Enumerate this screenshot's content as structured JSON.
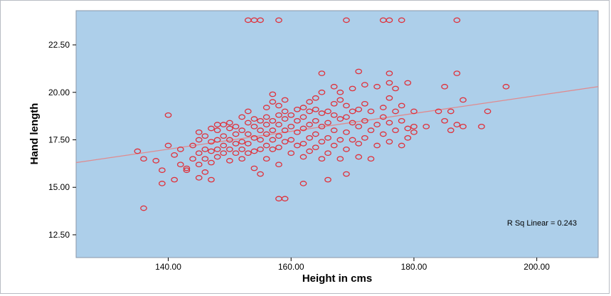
{
  "chart_data": {
    "type": "scatter",
    "title": "",
    "xlabel": "Height in cms",
    "ylabel": "Hand length",
    "xlim": [
      125,
      210
    ],
    "ylim": [
      11.3,
      24.3
    ],
    "xticks": [
      140,
      160,
      180,
      200
    ],
    "xtick_labels": [
      "140.00",
      "160.00",
      "180.00",
      "200.00"
    ],
    "yticks": [
      12.5,
      15.0,
      17.5,
      20.0,
      22.5
    ],
    "ytick_labels": [
      "12.50",
      "15.00",
      "17.50",
      "20.00",
      "22.50"
    ],
    "grid": false,
    "plot_background": "#adcfea",
    "marker_color": "#e0303a",
    "fit_line_color": "#e08a8e",
    "fit_line": {
      "x": [
        125,
        210
      ],
      "y": [
        16.3,
        20.3
      ]
    },
    "annotation": "R Sq Linear = 0.243",
    "points": [
      [
        153,
        23.8
      ],
      [
        154,
        23.8
      ],
      [
        155,
        23.8
      ],
      [
        158,
        23.8
      ],
      [
        169,
        23.8
      ],
      [
        175,
        23.8
      ],
      [
        176,
        23.8
      ],
      [
        178,
        23.8
      ],
      [
        187,
        23.8
      ],
      [
        136,
        13.9
      ],
      [
        139,
        15.2
      ],
      [
        141,
        15.4
      ],
      [
        143,
        15.9
      ],
      [
        145,
        15.5
      ],
      [
        147,
        15.4
      ],
      [
        155,
        15.7
      ],
      [
        158,
        14.4
      ],
      [
        159,
        14.4
      ],
      [
        162,
        15.2
      ],
      [
        166,
        15.4
      ],
      [
        169,
        15.7
      ],
      [
        135,
        16.9
      ],
      [
        136,
        16.5
      ],
      [
        138,
        16.4
      ],
      [
        139,
        15.9
      ],
      [
        140,
        17.2
      ],
      [
        140,
        18.8
      ],
      [
        141,
        16.7
      ],
      [
        142,
        16.2
      ],
      [
        142,
        17.0
      ],
      [
        143,
        16.0
      ],
      [
        144,
        16.5
      ],
      [
        144,
        17.2
      ],
      [
        145,
        16.2
      ],
      [
        145,
        16.8
      ],
      [
        145,
        17.5
      ],
      [
        145,
        17.9
      ],
      [
        146,
        15.8
      ],
      [
        146,
        16.5
      ],
      [
        146,
        17.0
      ],
      [
        146,
        17.7
      ],
      [
        147,
        16.3
      ],
      [
        147,
        16.9
      ],
      [
        147,
        17.4
      ],
      [
        147,
        18.1
      ],
      [
        148,
        16.6
      ],
      [
        148,
        17.0
      ],
      [
        148,
        17.5
      ],
      [
        148,
        18.0
      ],
      [
        148,
        18.3
      ],
      [
        149,
        16.8
      ],
      [
        149,
        17.2
      ],
      [
        149,
        17.7
      ],
      [
        149,
        18.3
      ],
      [
        150,
        16.4
      ],
      [
        150,
        17.0
      ],
      [
        150,
        17.5
      ],
      [
        150,
        18.1
      ],
      [
        150,
        18.4
      ],
      [
        151,
        16.8
      ],
      [
        151,
        17.3
      ],
      [
        151,
        17.8
      ],
      [
        151,
        18.2
      ],
      [
        152,
        16.5
      ],
      [
        152,
        17.0
      ],
      [
        152,
        17.4
      ],
      [
        152,
        18.0
      ],
      [
        152,
        18.7
      ],
      [
        153,
        16.8
      ],
      [
        153,
        17.3
      ],
      [
        153,
        17.8
      ],
      [
        153,
        18.4
      ],
      [
        153,
        19.0
      ],
      [
        154,
        16.0
      ],
      [
        154,
        16.9
      ],
      [
        154,
        17.6
      ],
      [
        154,
        18.2
      ],
      [
        154,
        18.6
      ],
      [
        155,
        17.0
      ],
      [
        155,
        17.5
      ],
      [
        155,
        18.0
      ],
      [
        155,
        18.5
      ],
      [
        156,
        16.5
      ],
      [
        156,
        17.2
      ],
      [
        156,
        17.8
      ],
      [
        156,
        18.3
      ],
      [
        156,
        18.7
      ],
      [
        156,
        19.2
      ],
      [
        157,
        17.0
      ],
      [
        157,
        17.5
      ],
      [
        157,
        18.0
      ],
      [
        157,
        18.5
      ],
      [
        157,
        19.5
      ],
      [
        157,
        19.9
      ],
      [
        158,
        16.2
      ],
      [
        158,
        17.1
      ],
      [
        158,
        17.7
      ],
      [
        158,
        18.3
      ],
      [
        158,
        18.8
      ],
      [
        158,
        19.3
      ],
      [
        159,
        17.4
      ],
      [
        159,
        18.0
      ],
      [
        159,
        18.6
      ],
      [
        159,
        19.0
      ],
      [
        159,
        19.6
      ],
      [
        160,
        16.8
      ],
      [
        160,
        17.5
      ],
      [
        160,
        18.2
      ],
      [
        160,
        18.8
      ],
      [
        161,
        17.2
      ],
      [
        161,
        17.9
      ],
      [
        161,
        18.5
      ],
      [
        161,
        19.1
      ],
      [
        162,
        16.6
      ],
      [
        162,
        17.3
      ],
      [
        162,
        18.1
      ],
      [
        162,
        18.7
      ],
      [
        162,
        19.2
      ],
      [
        163,
        16.9
      ],
      [
        163,
        17.6
      ],
      [
        163,
        18.3
      ],
      [
        163,
        19.0
      ],
      [
        163,
        19.5
      ],
      [
        164,
        17.1
      ],
      [
        164,
        17.8
      ],
      [
        164,
        18.5
      ],
      [
        164,
        19.1
      ],
      [
        164,
        19.7
      ],
      [
        165,
        16.5
      ],
      [
        165,
        17.4
      ],
      [
        165,
        18.2
      ],
      [
        165,
        18.9
      ],
      [
        165,
        20.0
      ],
      [
        165,
        21.0
      ],
      [
        166,
        16.8
      ],
      [
        166,
        17.6
      ],
      [
        166,
        18.4
      ],
      [
        166,
        19.0
      ],
      [
        167,
        17.2
      ],
      [
        167,
        18.0
      ],
      [
        167,
        18.8
      ],
      [
        167,
        19.4
      ],
      [
        167,
        20.3
      ],
      [
        168,
        16.5
      ],
      [
        168,
        17.5
      ],
      [
        168,
        18.6
      ],
      [
        168,
        19.6
      ],
      [
        168,
        20.0
      ],
      [
        169,
        17.0
      ],
      [
        169,
        17.9
      ],
      [
        169,
        18.7
      ],
      [
        169,
        19.3
      ],
      [
        170,
        17.5
      ],
      [
        170,
        18.4
      ],
      [
        170,
        19.0
      ],
      [
        170,
        20.2
      ],
      [
        171,
        16.6
      ],
      [
        171,
        17.3
      ],
      [
        171,
        18.2
      ],
      [
        171,
        19.1
      ],
      [
        171,
        21.1
      ],
      [
        172,
        17.6
      ],
      [
        172,
        18.5
      ],
      [
        172,
        19.4
      ],
      [
        172,
        20.4
      ],
      [
        173,
        16.5
      ],
      [
        173,
        18.0
      ],
      [
        173,
        19.0
      ],
      [
        174,
        17.2
      ],
      [
        174,
        18.3
      ],
      [
        174,
        20.3
      ],
      [
        175,
        17.8
      ],
      [
        175,
        18.7
      ],
      [
        175,
        19.2
      ],
      [
        176,
        17.4
      ],
      [
        176,
        18.4
      ],
      [
        176,
        19.7
      ],
      [
        176,
        20.5
      ],
      [
        176,
        21.0
      ],
      [
        177,
        18.0
      ],
      [
        177,
        19.0
      ],
      [
        177,
        20.2
      ],
      [
        178,
        17.2
      ],
      [
        178,
        18.5
      ],
      [
        178,
        19.3
      ],
      [
        179,
        17.6
      ],
      [
        179,
        18.1
      ],
      [
        179,
        20.5
      ],
      [
        180,
        17.9
      ],
      [
        180,
        18.2
      ],
      [
        180,
        19.0
      ],
      [
        182,
        18.2
      ],
      [
        184,
        19.0
      ],
      [
        185,
        20.3
      ],
      [
        185,
        18.5
      ],
      [
        186,
        18.0
      ],
      [
        186,
        19.0
      ],
      [
        187,
        18.3
      ],
      [
        187,
        21.0
      ],
      [
        188,
        18.2
      ],
      [
        188,
        19.6
      ],
      [
        191,
        18.2
      ],
      [
        192,
        19.0
      ],
      [
        195,
        20.3
      ]
    ]
  }
}
